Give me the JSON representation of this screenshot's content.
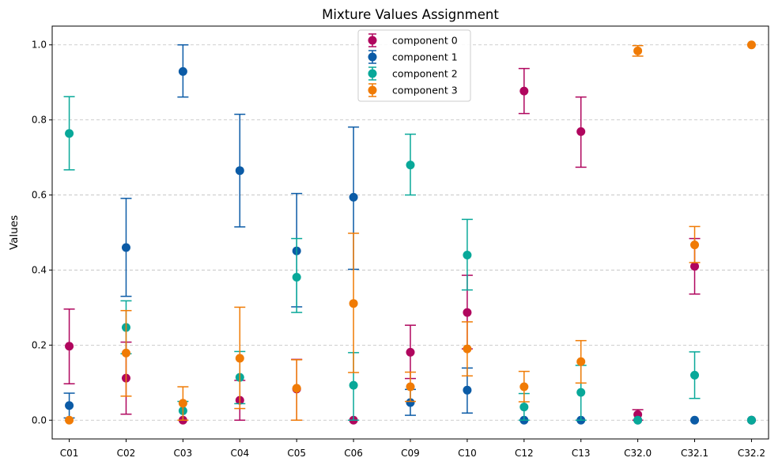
{
  "chart_data": {
    "type": "scatter",
    "title": "Mixture Values Assignment",
    "xlabel": "",
    "ylabel": "Values",
    "categories": [
      "C01",
      "C02",
      "C03",
      "C04",
      "C05",
      "C06",
      "C09",
      "C10",
      "C12",
      "C13",
      "C32.0",
      "C32.1",
      "C32.2"
    ],
    "ylim": [
      -0.05,
      1.05
    ],
    "yticks": [
      0.0,
      0.2,
      0.4,
      0.6,
      0.8,
      1.0
    ],
    "ytick_labels": [
      "0.0",
      "0.2",
      "0.4",
      "0.6",
      "0.8",
      "1.0"
    ],
    "grid": "y-dashed",
    "legend_position": "top-center",
    "series": [
      {
        "name": "component 0",
        "color": "#b0065e",
        "values": [
          0.197,
          0.112,
          0.0,
          0.053,
          0.083,
          0.0,
          0.181,
          0.287,
          0.877,
          0.769,
          0.015,
          0.41,
          0.0
        ],
        "lower": [
          0.097,
          0.016,
          0.0,
          0.0,
          0.0,
          0.0,
          0.111,
          0.19,
          0.817,
          0.674,
          0.0,
          0.336,
          0.0
        ],
        "upper": [
          0.296,
          0.208,
          0.0,
          0.106,
          0.162,
          0.0,
          0.253,
          0.386,
          0.937,
          0.861,
          0.028,
          0.484,
          0.0
        ]
      },
      {
        "name": "component 1",
        "color": "#0b5ba6",
        "values": [
          0.039,
          0.46,
          0.929,
          0.665,
          0.451,
          0.594,
          0.047,
          0.08,
          0.0,
          0.0,
          0.0,
          0.0,
          0.0
        ],
        "lower": [
          0.006,
          0.33,
          0.861,
          0.515,
          0.302,
          0.402,
          0.013,
          0.019,
          0.0,
          0.0,
          0.0,
          0.0,
          0.0
        ],
        "upper": [
          0.072,
          0.591,
          1.0,
          0.815,
          0.604,
          0.781,
          0.082,
          0.139,
          0.0,
          0.0,
          0.0,
          0.0,
          0.0
        ]
      },
      {
        "name": "component 2",
        "color": "#08a899",
        "values": [
          0.764,
          0.247,
          0.025,
          0.114,
          0.381,
          0.093,
          0.68,
          0.44,
          0.035,
          0.074,
          0.0,
          0.12,
          0.0
        ],
        "lower": [
          0.667,
          0.177,
          0.0,
          0.044,
          0.287,
          0.0,
          0.6,
          0.347,
          0.0,
          0.0,
          0.0,
          0.058,
          0.0
        ],
        "upper": [
          0.862,
          0.318,
          0.05,
          0.183,
          0.484,
          0.18,
          0.762,
          0.535,
          0.071,
          0.146,
          0.0,
          0.182,
          0.0
        ]
      },
      {
        "name": "component 3",
        "color": "#f07b05",
        "values": [
          0.0,
          0.179,
          0.045,
          0.165,
          0.085,
          0.311,
          0.089,
          0.19,
          0.089,
          0.156,
          0.984,
          0.467,
          1.0
        ],
        "lower": [
          0.0,
          0.064,
          0.0,
          0.031,
          0.0,
          0.127,
          0.05,
          0.118,
          0.049,
          0.099,
          0.97,
          0.42,
          1.0
        ],
        "upper": [
          0.0,
          0.292,
          0.089,
          0.301,
          0.161,
          0.498,
          0.128,
          0.262,
          0.13,
          0.212,
          0.998,
          0.516,
          1.0
        ]
      }
    ]
  }
}
